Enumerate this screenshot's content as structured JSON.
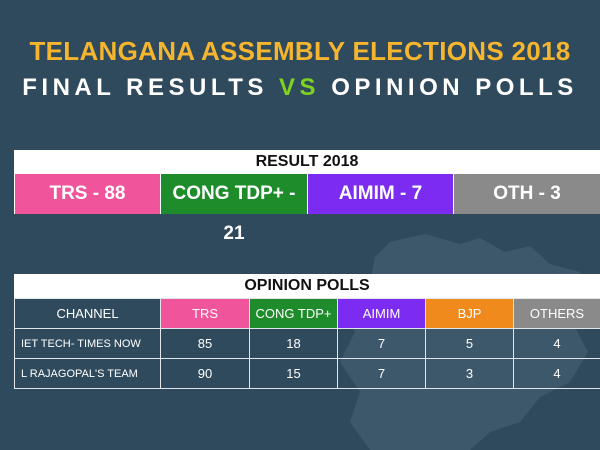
{
  "header": {
    "title_line1": "TELANGANA ASSEMBLY ELECTIONS 2018",
    "title_line2_a": "FINAL RESULTS",
    "title_line2_vs": "VS",
    "title_line2_b": "OPINION POLLS"
  },
  "result": {
    "title": "RESULT 2018",
    "items": [
      {
        "label": "TRS - 88",
        "color": "#f0559b"
      },
      {
        "label": "CONG TDP+ - 21",
        "color": "#1e8c2a"
      },
      {
        "label": "AIMIM - 7",
        "color": "#7b2cf0"
      },
      {
        "label": "OTH - 3",
        "color": "#8a8a8a"
      }
    ]
  },
  "polls": {
    "title": "OPINION POLLS",
    "columns": [
      {
        "label": "CHANNEL",
        "color": "#2f4a5c"
      },
      {
        "label": "TRS",
        "color": "#f0559b"
      },
      {
        "label": "CONG TDP+",
        "color": "#1e8c2a"
      },
      {
        "label": "AIMIM",
        "color": "#7b2cf0"
      },
      {
        "label": "BJP",
        "color": "#f08a1c"
      },
      {
        "label": "OTHERS",
        "color": "#8a8a8a"
      }
    ],
    "rows": [
      {
        "channel": "IET TECH- TIMES NOW",
        "values": [
          "85",
          "18",
          "7",
          "5",
          "4"
        ]
      },
      {
        "channel": "L RAJAGOPAL'S TEAM",
        "values": [
          "90",
          "15",
          "7",
          "3",
          "4"
        ]
      }
    ]
  }
}
